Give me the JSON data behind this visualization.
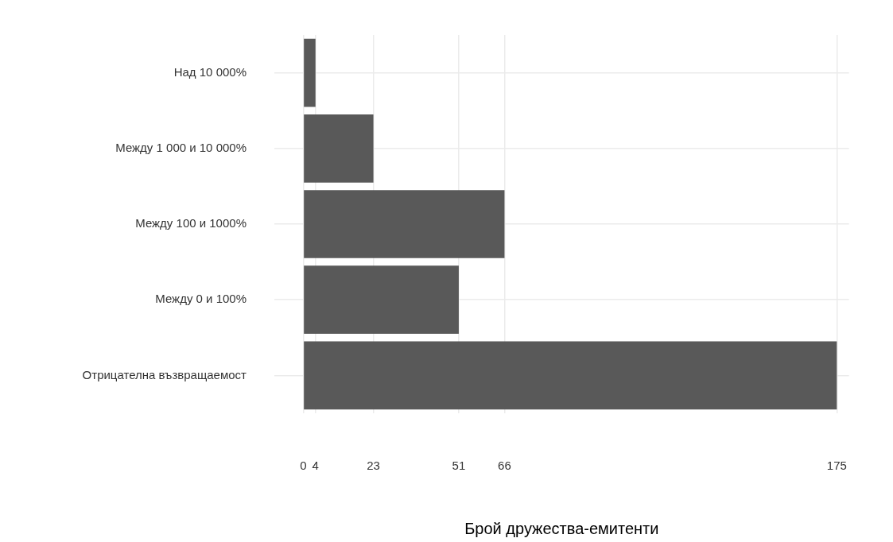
{
  "chart_data": {
    "type": "bar",
    "orientation": "horizontal",
    "xlabel": "Брой дружества-емитенти",
    "categories": [
      "Над 10 000%",
      "Между 1 000 и 10 000%",
      "Между 100 и 1000%",
      "Между 0 и 100%",
      "Отрицателна възвращаемост"
    ],
    "values": [
      4,
      23,
      66,
      51,
      175
    ],
    "color": "#595959",
    "xlim": [
      -9.5,
      179
    ],
    "xticks": [
      0,
      4,
      23,
      51,
      66,
      175
    ],
    "grid": true,
    "legend": false
  }
}
